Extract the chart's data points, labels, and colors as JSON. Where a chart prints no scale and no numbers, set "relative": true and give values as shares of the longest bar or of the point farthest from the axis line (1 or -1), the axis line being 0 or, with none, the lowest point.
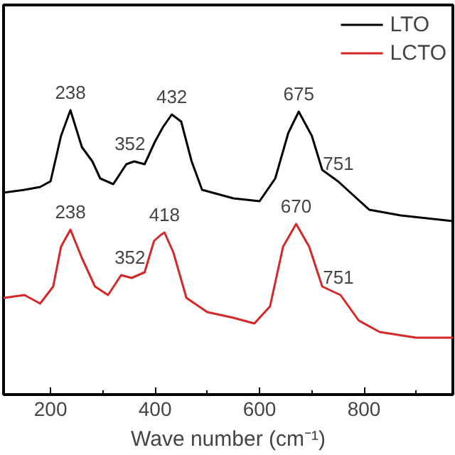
{
  "chart_data": {
    "type": "line",
    "relative": true,
    "xlabel": "Wave number (cm⁻¹)",
    "xlim": [
      110,
      970
    ],
    "xticks": [
      200,
      400,
      600,
      800
    ],
    "legend": "top right",
    "grid": false,
    "series": [
      {
        "name": "LTO",
        "color": "#000000",
        "x": [
          110,
          150,
          180,
          200,
          220,
          238,
          260,
          280,
          295,
          320,
          345,
          360,
          380,
          400,
          415,
          432,
          450,
          470,
          490,
          550,
          600,
          630,
          655,
          675,
          700,
          720,
          750,
          780,
          810,
          870,
          970
        ],
        "values": [
          0.71,
          0.72,
          0.73,
          0.75,
          0.91,
          1.0,
          0.87,
          0.82,
          0.76,
          0.74,
          0.81,
          0.82,
          0.81,
          0.89,
          0.94,
          0.985,
          0.96,
          0.82,
          0.72,
          0.69,
          0.68,
          0.76,
          0.92,
          0.995,
          0.91,
          0.79,
          0.75,
          0.7,
          0.65,
          0.63,
          0.61
        ]
      },
      {
        "name": "LCTO",
        "color": "#d62728",
        "x": [
          110,
          150,
          180,
          205,
          220,
          238,
          260,
          285,
          310,
          335,
          355,
          380,
          398,
          410,
          418,
          435,
          460,
          500,
          550,
          590,
          620,
          645,
          670,
          695,
          720,
          755,
          790,
          830,
          900,
          970
        ],
        "values": [
          0.34,
          0.35,
          0.32,
          0.38,
          0.52,
          0.58,
          0.48,
          0.38,
          0.35,
          0.42,
          0.41,
          0.43,
          0.54,
          0.56,
          0.57,
          0.5,
          0.34,
          0.29,
          0.27,
          0.25,
          0.31,
          0.52,
          0.6,
          0.52,
          0.38,
          0.35,
          0.26,
          0.22,
          0.2,
          0.2
        ]
      }
    ],
    "annotations": [
      {
        "text": "238",
        "x": 238,
        "y": 1.0
      },
      {
        "text": "352",
        "x": 352,
        "y": 0.82
      },
      {
        "text": "432",
        "x": 432,
        "y": 0.985
      },
      {
        "text": "675",
        "x": 675,
        "y": 0.995
      },
      {
        "text": "751",
        "x": 751,
        "y": 0.75
      },
      {
        "text": "238",
        "x": 238,
        "y": 0.58
      },
      {
        "text": "352",
        "x": 352,
        "y": 0.42
      },
      {
        "text": "418",
        "x": 418,
        "y": 0.57
      },
      {
        "text": "670",
        "x": 670,
        "y": 0.6
      },
      {
        "text": "751",
        "x": 751,
        "y": 0.35
      }
    ]
  }
}
